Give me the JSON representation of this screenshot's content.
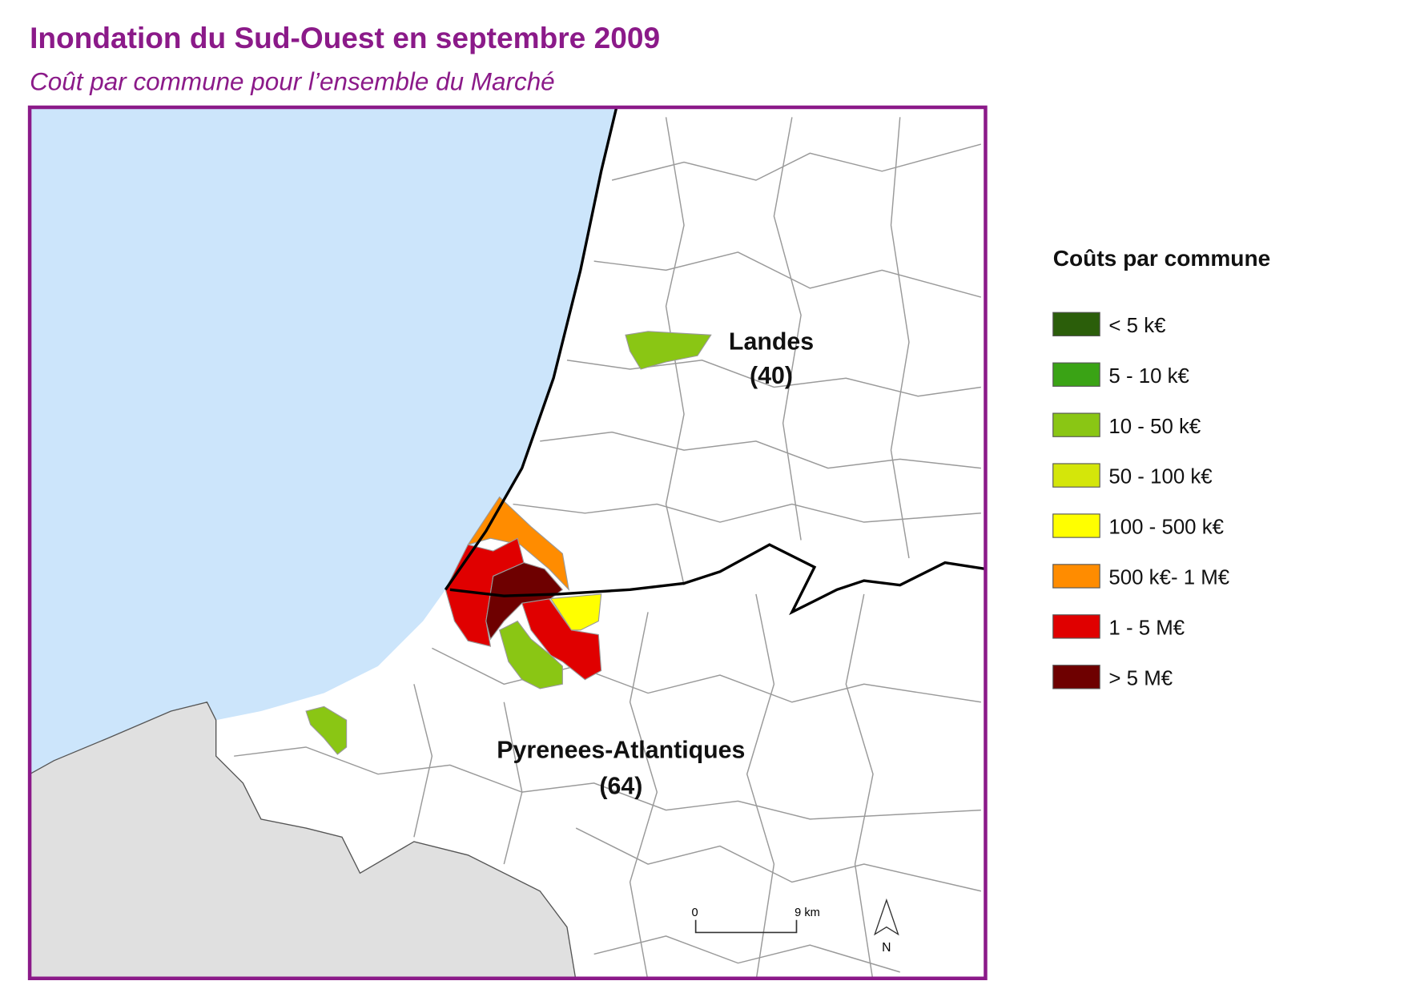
{
  "header": {
    "title": "Inondation du Sud-Ouest en septembre 2009",
    "subtitle": "Coût par commune pour l’ensemble du Marché"
  },
  "legend": {
    "title": "Coûts par commune",
    "items": [
      {
        "label": "< 5 k€",
        "color": "#2b5e0a"
      },
      {
        "label": "5 - 10 k€",
        "color": "#3aa315"
      },
      {
        "label": "10 - 50 k€",
        "color": "#8ac614"
      },
      {
        "label": "50 - 100 k€",
        "color": "#d4e60a"
      },
      {
        "label": "100 - 500 k€",
        "color": "#ffff00"
      },
      {
        "label": "500 k€- 1 M€",
        "color": "#ff8c00"
      },
      {
        "label": "1 - 5 M€",
        "color": "#e00000"
      },
      {
        "label": "> 5 M€",
        "color": "#6e0000"
      }
    ]
  },
  "map": {
    "labels": [
      "Landes",
      "(40)",
      "Pyrenees-Atlantiques",
      "(64)"
    ],
    "scale": {
      "start": "0",
      "end": "9 km"
    },
    "north": "N"
  }
}
